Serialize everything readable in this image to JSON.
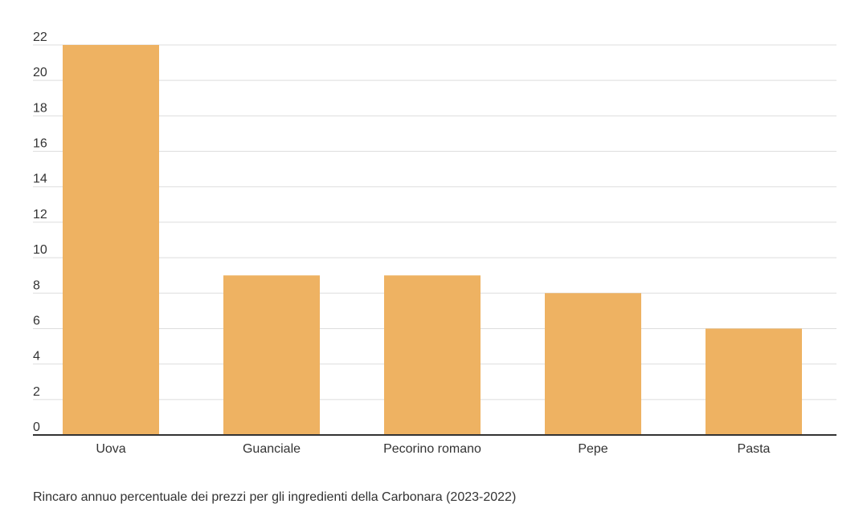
{
  "chart_data": {
    "type": "bar",
    "categories": [
      "Uova",
      "Guanciale",
      "Pecorino romano",
      "Pepe",
      "Pasta"
    ],
    "values": [
      22,
      9,
      9,
      8,
      6
    ],
    "ylim": [
      0,
      22
    ],
    "yticks": [
      0,
      2,
      4,
      6,
      8,
      10,
      12,
      14,
      16,
      18,
      20,
      22
    ],
    "grid": true,
    "bar_color": "#EEB262",
    "caption": "Rincaro annuo percentuale dei prezzi per gli ingredienti della Carbonara (2023-2022)"
  }
}
